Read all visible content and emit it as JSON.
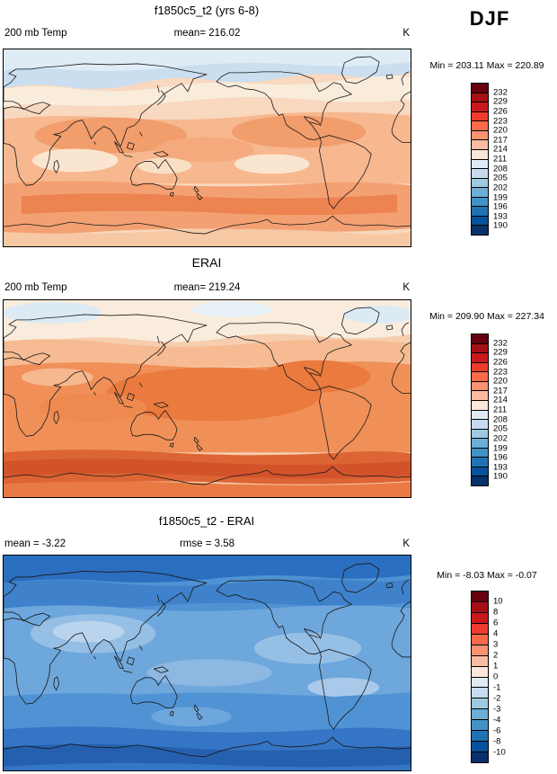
{
  "season_label": "DJF",
  "panels": [
    {
      "id": "model",
      "title": "f1850c5_t2 (yrs 6-8)",
      "left_label": "200 mb Temp",
      "center_label": "mean= 216.02",
      "right_label": "K",
      "minmax_label": "Min = 203.11 Max = 220.89",
      "colorbar": {
        "labels": [
          "232",
          "229",
          "226",
          "223",
          "220",
          "217",
          "214",
          "211",
          "208",
          "205",
          "202",
          "199",
          "196",
          "193",
          "190"
        ],
        "colors": [
          "#67000d",
          "#a50f15",
          "#cb181d",
          "#ef3b2c",
          "#fb6a4a",
          "#fc9272",
          "#fcbba1",
          "#fee5d9",
          "#deebf7",
          "#c6dbef",
          "#9ecae1",
          "#6baed6",
          "#4292c6",
          "#2171b5",
          "#08519c",
          "#08306b"
        ]
      }
    },
    {
      "id": "reference",
      "title": "ERAI",
      "left_label": "200 mb Temp",
      "center_label": "mean= 219.24",
      "right_label": "K",
      "minmax_label": "Min = 209.90 Max = 227.34",
      "colorbar": {
        "labels": [
          "232",
          "229",
          "226",
          "223",
          "220",
          "217",
          "214",
          "211",
          "208",
          "205",
          "202",
          "199",
          "196",
          "193",
          "190"
        ],
        "colors": [
          "#67000d",
          "#a50f15",
          "#cb181d",
          "#ef3b2c",
          "#fb6a4a",
          "#fc9272",
          "#fcbba1",
          "#fee5d9",
          "#deebf7",
          "#c6dbef",
          "#9ecae1",
          "#6baed6",
          "#4292c6",
          "#2171b5",
          "#08519c",
          "#08306b"
        ]
      }
    },
    {
      "id": "difference",
      "title": "f1850c5_t2 - ERAI",
      "left_label": "mean =  -3.22",
      "center_label": "rmse =   3.58",
      "right_label": "K",
      "minmax_label": "Min =  -8.03 Max =  -0.07",
      "colorbar": {
        "labels": [
          "10",
          "8",
          "6",
          "4",
          "3",
          "2",
          "1",
          "0",
          "-1",
          "-2",
          "-3",
          "-4",
          "-6",
          "-8",
          "-10"
        ],
        "colors": [
          "#67000d",
          "#a50f15",
          "#cb181d",
          "#ef3b2c",
          "#fb6a4a",
          "#fc9272",
          "#fcbba1",
          "#fee5d9",
          "#deebf7",
          "#c6dbef",
          "#9ecae1",
          "#6baed6",
          "#4292c6",
          "#2171b5",
          "#08519c",
          "#08306b"
        ]
      }
    }
  ],
  "chart_data": [
    {
      "type": "heatmap",
      "panel": "top",
      "title": "f1850c5_t2 (yrs 6-8)",
      "variable": "200 mb Temp",
      "units": "K",
      "season": "DJF",
      "mean": 216.02,
      "min": 203.11,
      "max": 220.89,
      "contour_levels": [
        190,
        193,
        196,
        199,
        202,
        205,
        208,
        211,
        214,
        217,
        220,
        223,
        226,
        229,
        232
      ],
      "palette_top_to_bottom": [
        "#67000d",
        "#a50f15",
        "#cb181d",
        "#ef3b2c",
        "#fb6a4a",
        "#fc9272",
        "#fcbba1",
        "#fee5d9",
        "#deebf7",
        "#c6dbef",
        "#9ecae1",
        "#6baed6",
        "#4292c6",
        "#2171b5",
        "#08519c",
        "#08306b"
      ],
      "map_style": "global latitude-longitude filled-contour map with coastlines, Pacific-centered (0-360E)",
      "legend_position": "right"
    },
    {
      "type": "heatmap",
      "panel": "middle",
      "title": "ERAI",
      "variable": "200 mb Temp",
      "units": "K",
      "season": "DJF",
      "mean": 219.24,
      "min": 209.9,
      "max": 227.34,
      "contour_levels": [
        190,
        193,
        196,
        199,
        202,
        205,
        208,
        211,
        214,
        217,
        220,
        223,
        226,
        229,
        232
      ],
      "palette_top_to_bottom": [
        "#67000d",
        "#a50f15",
        "#cb181d",
        "#ef3b2c",
        "#fb6a4a",
        "#fc9272",
        "#fcbba1",
        "#fee5d9",
        "#deebf7",
        "#c6dbef",
        "#9ecae1",
        "#6baed6",
        "#4292c6",
        "#2171b5",
        "#08519c",
        "#08306b"
      ],
      "map_style": "global latitude-longitude filled-contour map with coastlines, Pacific-centered (0-360E)",
      "legend_position": "right"
    },
    {
      "type": "heatmap",
      "panel": "bottom",
      "title": "f1850c5_t2 - ERAI",
      "variable": "200 mb Temp difference (model minus reanalysis)",
      "units": "K",
      "season": "DJF",
      "mean": -3.22,
      "rmse": 3.58,
      "min": -8.03,
      "max": -0.07,
      "contour_levels": [
        -10,
        -8,
        -6,
        -4,
        -3,
        -2,
        -1,
        0,
        1,
        2,
        3,
        4,
        6,
        8,
        10
      ],
      "palette_top_to_bottom": [
        "#67000d",
        "#a50f15",
        "#cb181d",
        "#ef3b2c",
        "#fb6a4a",
        "#fc9272",
        "#fcbba1",
        "#fee5d9",
        "#deebf7",
        "#c6dbef",
        "#9ecae1",
        "#6baed6",
        "#4292c6",
        "#2171b5",
        "#08519c",
        "#08306b"
      ],
      "map_style": "global latitude-longitude filled-contour map with coastlines, Pacific-centered (0-360E); field is negative nearly everywhere (blues)",
      "legend_position": "right"
    }
  ]
}
